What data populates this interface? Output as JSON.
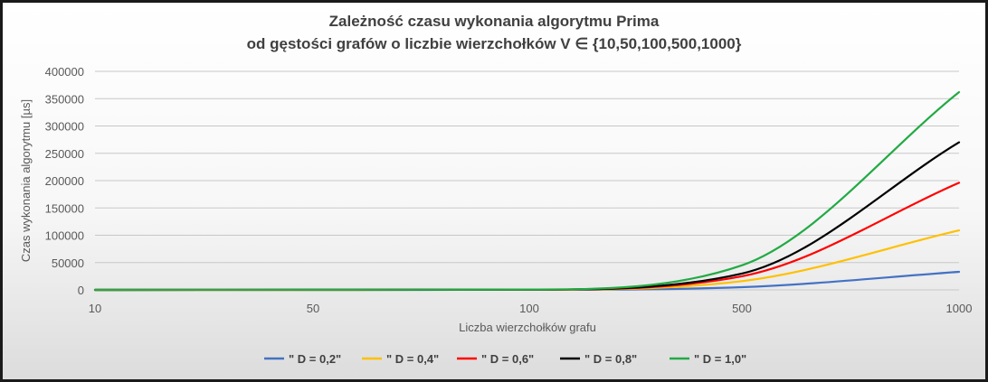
{
  "chart_data": {
    "type": "line",
    "title_lines": [
      "Zależność czasu wykonania algorytmu Prima",
      "od gęstości grafów o liczbie wierzchołków V ∈ {10,50,100,500,1000}"
    ],
    "xlabel": "Liczba wierzchołków grafu",
    "ylabel": "Czas wykonania algorytmu [µs]",
    "x_categories": [
      "10",
      "50",
      "100",
      "500",
      "1000"
    ],
    "y_ticks": [
      "0",
      "50000",
      "100000",
      "150000",
      "200000",
      "250000",
      "300000",
      "350000",
      "400000"
    ],
    "ylim": [
      0,
      400000
    ],
    "grid": true,
    "legend_position": "bottom",
    "series": [
      {
        "name": "\" D = 0,2\"",
        "color": "#4472c4",
        "values": [
          0,
          30,
          150,
          5000,
          33000
        ]
      },
      {
        "name": "\" D = 0,4\"",
        "color": "#ffc000",
        "values": [
          0,
          60,
          300,
          16000,
          109000
        ]
      },
      {
        "name": "\" D = 0,6\"",
        "color": "#ff0000",
        "values": [
          0,
          80,
          400,
          25000,
          196000
        ]
      },
      {
        "name": "\" D = 0,8\"",
        "color": "#000000",
        "values": [
          0,
          100,
          500,
          30000,
          270000
        ]
      },
      {
        "name": "\" D = 1,0\"",
        "color": "#22aa44",
        "values": [
          0,
          150,
          600,
          45000,
          362000
        ]
      }
    ]
  }
}
